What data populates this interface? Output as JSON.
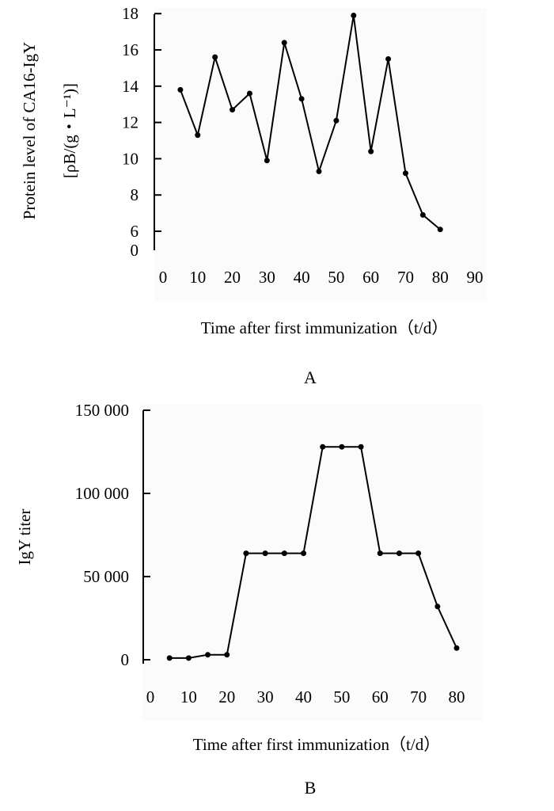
{
  "chart_data": [
    {
      "type": "line",
      "panel": "A",
      "ylabel": "Protein level of CA16-IgY",
      "ylabel_units": "[ρB/(g・L⁻¹)]",
      "xlabel": "Time after first immunization（t/d）",
      "x_ticks": [
        "0",
        "10",
        "20",
        "30",
        "40",
        "50",
        "60",
        "70",
        "80",
        "90"
      ],
      "y_ticks": [
        "0",
        "6",
        "8",
        "10",
        "12",
        "14",
        "16",
        "18"
      ],
      "x": [
        5,
        10,
        15,
        20,
        25,
        30,
        35,
        40,
        45,
        50,
        55,
        60,
        65,
        70,
        75,
        80
      ],
      "values": [
        13.8,
        11.3,
        15.6,
        12.7,
        13.6,
        9.9,
        16.4,
        13.3,
        9.3,
        12.1,
        17.9,
        10.4,
        15.5,
        9.2,
        6.9,
        6.1
      ]
    },
    {
      "type": "line",
      "panel": "B",
      "ylabel": "IgY titer",
      "xlabel": "Time after first immunization（t/d）",
      "x_ticks": [
        "0",
        "10",
        "20",
        "30",
        "40",
        "50",
        "60",
        "70",
        "80"
      ],
      "y_ticks": [
        "0",
        "50 000",
        "100 000",
        "150 000"
      ],
      "ylim": [
        0,
        150000
      ],
      "x": [
        5,
        10,
        15,
        20,
        25,
        30,
        35,
        40,
        45,
        50,
        55,
        60,
        65,
        70,
        75,
        80
      ],
      "values": [
        1000,
        1000,
        3000,
        3000,
        64000,
        64000,
        64000,
        64000,
        128000,
        128000,
        128000,
        64000,
        64000,
        64000,
        32000,
        7000
      ]
    }
  ]
}
